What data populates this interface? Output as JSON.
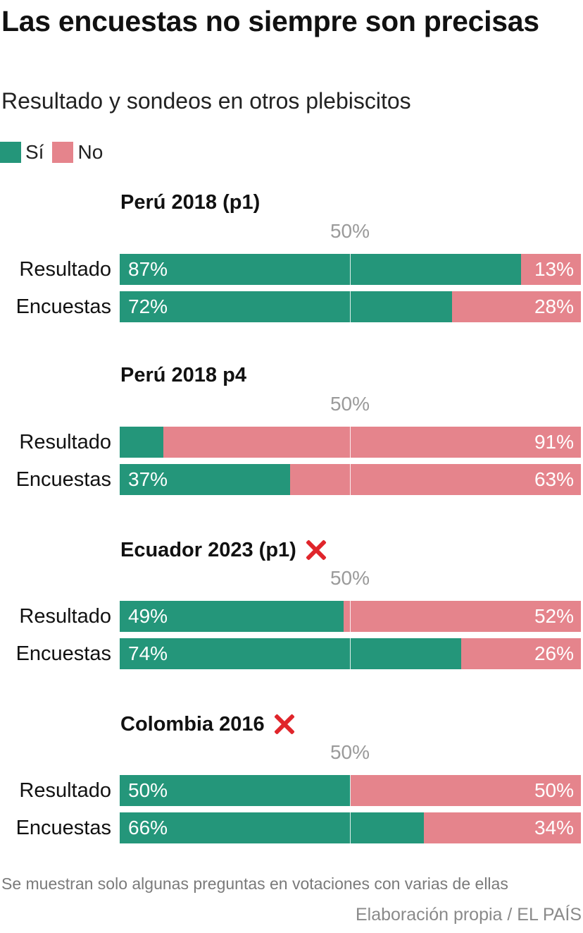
{
  "title": "Las encuestas no siempre son precisas",
  "subtitle": "Resultado y sondeos en otros plebiscitos",
  "legend": [
    {
      "label": "Sí",
      "color": "#24967a"
    },
    {
      "label": "No",
      "color": "#e5848c"
    }
  ],
  "chart_data": {
    "type": "bar",
    "stacked": true,
    "orientation": "horizontal",
    "xlim": [
      0,
      100
    ],
    "reference_line": {
      "value": 50,
      "label": "50%"
    },
    "series_names": [
      "Sí",
      "No"
    ],
    "colors": {
      "si": "#24967a",
      "no": "#e5848c"
    },
    "panels": [
      {
        "title": "Perú 2018 (p1)",
        "mark": "",
        "rows": [
          {
            "label": "Resultado",
            "si": 87,
            "no": 13,
            "si_label": "87%",
            "no_label": "13%"
          },
          {
            "label": "Encuestas",
            "si": 72,
            "no": 28,
            "si_label": "72%",
            "no_label": "28%"
          }
        ]
      },
      {
        "title": "Perú 2018 p4",
        "mark": "",
        "rows": [
          {
            "label": "Resultado",
            "si": 9.5,
            "no": 90.5,
            "si_label": "",
            "no_label": "91%"
          },
          {
            "label": "Encuestas",
            "si": 37,
            "no": 63,
            "si_label": "37%",
            "no_label": "63%"
          }
        ]
      },
      {
        "title": "Ecuador 2023 (p1)",
        "mark": "cross-mark",
        "rows": [
          {
            "label": "Resultado",
            "si": 48.5,
            "no": 51.5,
            "si_label": "49%",
            "no_label": "52%"
          },
          {
            "label": "Encuestas",
            "si": 74,
            "no": 26,
            "si_label": "74%",
            "no_label": "26%"
          }
        ]
      },
      {
        "title": "Colombia 2016",
        "mark": "cross-mark",
        "rows": [
          {
            "label": "Resultado",
            "si": 50,
            "no": 50,
            "si_label": "50%",
            "no_label": "50%"
          },
          {
            "label": "Encuestas",
            "si": 66,
            "no": 34,
            "si_label": "66%",
            "no_label": "34%"
          }
        ]
      }
    ]
  },
  "footnote": "Se muestran solo algunas preguntas en votaciones con varias de ellas",
  "source": "Elaboración propia / EL PAÍS"
}
